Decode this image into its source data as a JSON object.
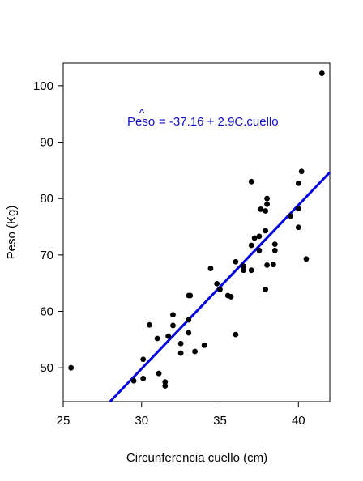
{
  "chart_data": {
    "type": "scatter",
    "title": "",
    "xlabel": "Circunferencia cuello (cm)",
    "ylabel": "Peso (Kg)",
    "xlim": [
      25,
      42
    ],
    "ylim": [
      44,
      104
    ],
    "xticks": [
      "25",
      "30",
      "35",
      "40"
    ],
    "yticks": [
      "50",
      "60",
      "70",
      "80",
      "90",
      "100"
    ],
    "grid": false,
    "points": [
      [
        25.5,
        50.0
      ],
      [
        29.5,
        47.7
      ],
      [
        30.1,
        48.1
      ],
      [
        30.1,
        51.5
      ],
      [
        30.5,
        57.6
      ],
      [
        31.0,
        55.2
      ],
      [
        31.1,
        49.0
      ],
      [
        31.5,
        47.5
      ],
      [
        31.5,
        46.8
      ],
      [
        31.7,
        55.6
      ],
      [
        32.0,
        57.5
      ],
      [
        32.0,
        59.4
      ],
      [
        32.5,
        54.3
      ],
      [
        32.5,
        52.6
      ],
      [
        33.0,
        56.2
      ],
      [
        33.0,
        58.5
      ],
      [
        33.0,
        62.8
      ],
      [
        33.1,
        62.8
      ],
      [
        33.4,
        52.9
      ],
      [
        34.0,
        54.0
      ],
      [
        34.4,
        67.6
      ],
      [
        34.8,
        64.9
      ],
      [
        35.0,
        63.9
      ],
      [
        35.5,
        62.8
      ],
      [
        35.7,
        62.6
      ],
      [
        36.0,
        55.9
      ],
      [
        36.0,
        68.8
      ],
      [
        36.5,
        67.3
      ],
      [
        36.5,
        68.0
      ],
      [
        37.0,
        83.0
      ],
      [
        37.0,
        71.7
      ],
      [
        37.0,
        67.3
      ],
      [
        37.2,
        73.0
      ],
      [
        37.5,
        73.3
      ],
      [
        37.5,
        70.8
      ],
      [
        37.6,
        78.1
      ],
      [
        38.0,
        80.0
      ],
      [
        38.0,
        79.0
      ],
      [
        37.9,
        77.8
      ],
      [
        37.9,
        74.3
      ],
      [
        38.0,
        68.2
      ],
      [
        37.9,
        63.9
      ],
      [
        38.4,
        68.3
      ],
      [
        38.5,
        71.9
      ],
      [
        38.5,
        70.8
      ],
      [
        39.5,
        76.9
      ],
      [
        40.0,
        82.7
      ],
      [
        40.0,
        78.2
      ],
      [
        40.0,
        74.9
      ],
      [
        40.2,
        84.8
      ],
      [
        40.5,
        69.3
      ],
      [
        41.5,
        102.2
      ]
    ],
    "fit_line": {
      "intercept": -37.16,
      "slope": 2.9,
      "color": "#0000ee"
    },
    "annotation": {
      "lhs": "Peso",
      "hat": "^",
      "rhs": "= -37.16 + 2.9C.cuello"
    },
    "point_color": "#000000"
  }
}
